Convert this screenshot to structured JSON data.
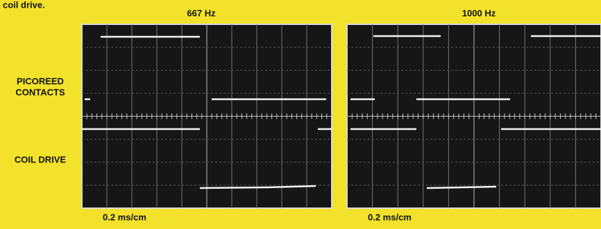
{
  "caption_fragment": "coil drive.",
  "scopes": [
    {
      "title": "667 Hz",
      "timebase": "0.2 ms/cm"
    },
    {
      "title": "1000 Hz",
      "timebase": "0.2 ms/cm"
    }
  ],
  "labels": {
    "contacts": [
      "PICOREED",
      "CONTACTS"
    ],
    "coil": "COIL DRIVE"
  }
}
